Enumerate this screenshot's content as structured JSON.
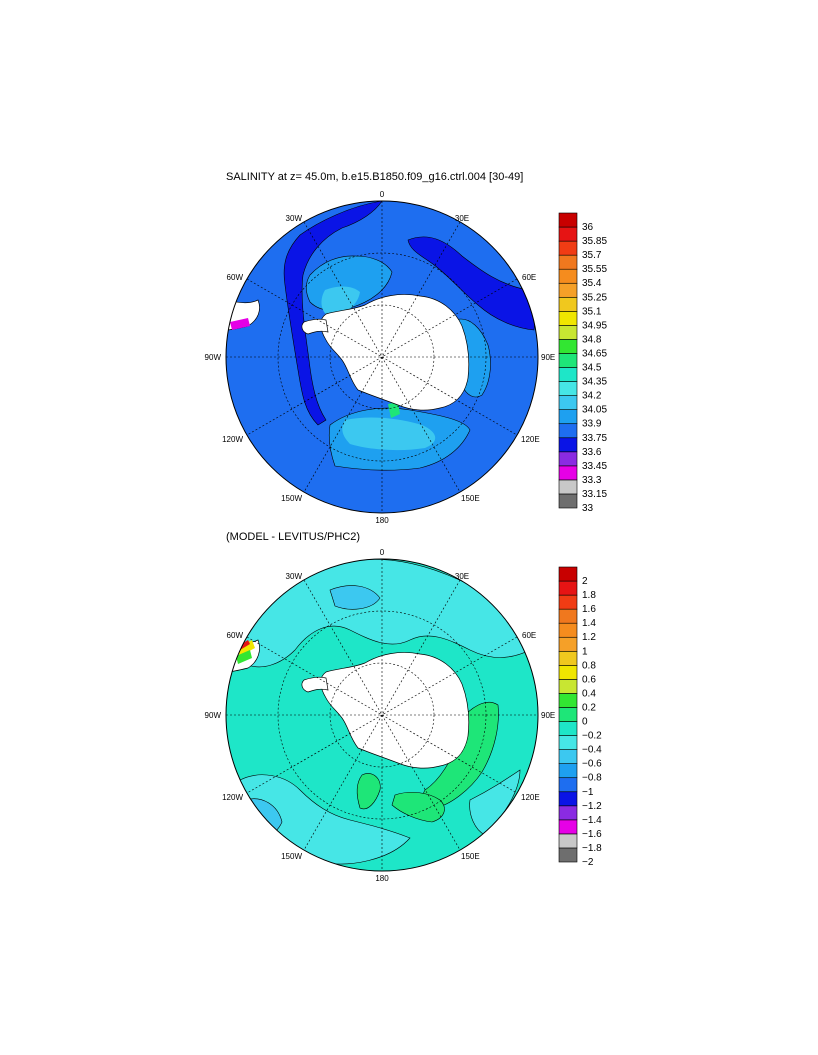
{
  "panels": [
    {
      "id": "salinity",
      "title": "SALINITY at z=  45.0m, b.e15.B1850.f09_g16.ctrl.004 [30-49]",
      "lon_labels": {
        "n": "0",
        "ne1": "30E",
        "ne2": "60E",
        "e": "90E",
        "se1": "120E",
        "se2": "150E",
        "s": "180",
        "sw2": "150W",
        "sw1": "120W",
        "w": "90W",
        "nw2": "60W",
        "nw1": "30W"
      },
      "colorbar": {
        "colors": [
          "#6e6e6e",
          "#c8c8c8",
          "#e600e6",
          "#8a2be2",
          "#0a14e6",
          "#1e6ef0",
          "#1ea0f0",
          "#3cc8f0",
          "#46e6e6",
          "#1ee6c8",
          "#1ee678",
          "#32e632",
          "#c8e632",
          "#f0e600",
          "#f0c81e",
          "#f5a028",
          "#f58c1e",
          "#f0781e",
          "#f03c14",
          "#e61414",
          "#c80000"
        ],
        "labels": [
          "33",
          "33.15",
          "33.3",
          "33.45",
          "33.6",
          "33.75",
          "33.9",
          "34.05",
          "34.2",
          "34.35",
          "34.5",
          "34.65",
          "34.8",
          "34.95",
          "35.1",
          "35.25",
          "35.4",
          "35.55",
          "35.7",
          "35.85",
          "36"
        ]
      }
    },
    {
      "id": "difference",
      "title": "(MODEL - LEVITUS/PHC2)",
      "lon_labels": {
        "n": "0",
        "ne1": "30E",
        "ne2": "60E",
        "e": "90E",
        "se1": "120E",
        "se2": "150E",
        "s": "180",
        "sw2": "150W",
        "sw1": "120W",
        "w": "90W",
        "nw2": "60W",
        "nw1": "30W"
      },
      "colorbar": {
        "colors": [
          "#6e6e6e",
          "#c8c8c8",
          "#e600e6",
          "#8a2be2",
          "#0a14e6",
          "#1e6ef0",
          "#1ea0f0",
          "#3cc8f0",
          "#46e6e6",
          "#1ee6c8",
          "#1ee678",
          "#32e632",
          "#c8e632",
          "#f0e600",
          "#f0c81e",
          "#f5a028",
          "#f58c1e",
          "#f0781e",
          "#f03c14",
          "#e61414",
          "#c80000"
        ],
        "labels": [
          "−2",
          "−1.8",
          "−1.6",
          "−1.4",
          "−1.2",
          "−1",
          "−0.8",
          "−0.6",
          "−0.4",
          "−0.2",
          "0",
          "0.2",
          "0.4",
          "0.6",
          "0.8",
          "1",
          "1.2",
          "1.4",
          "1.6",
          "1.8",
          "2"
        ]
      }
    }
  ]
}
